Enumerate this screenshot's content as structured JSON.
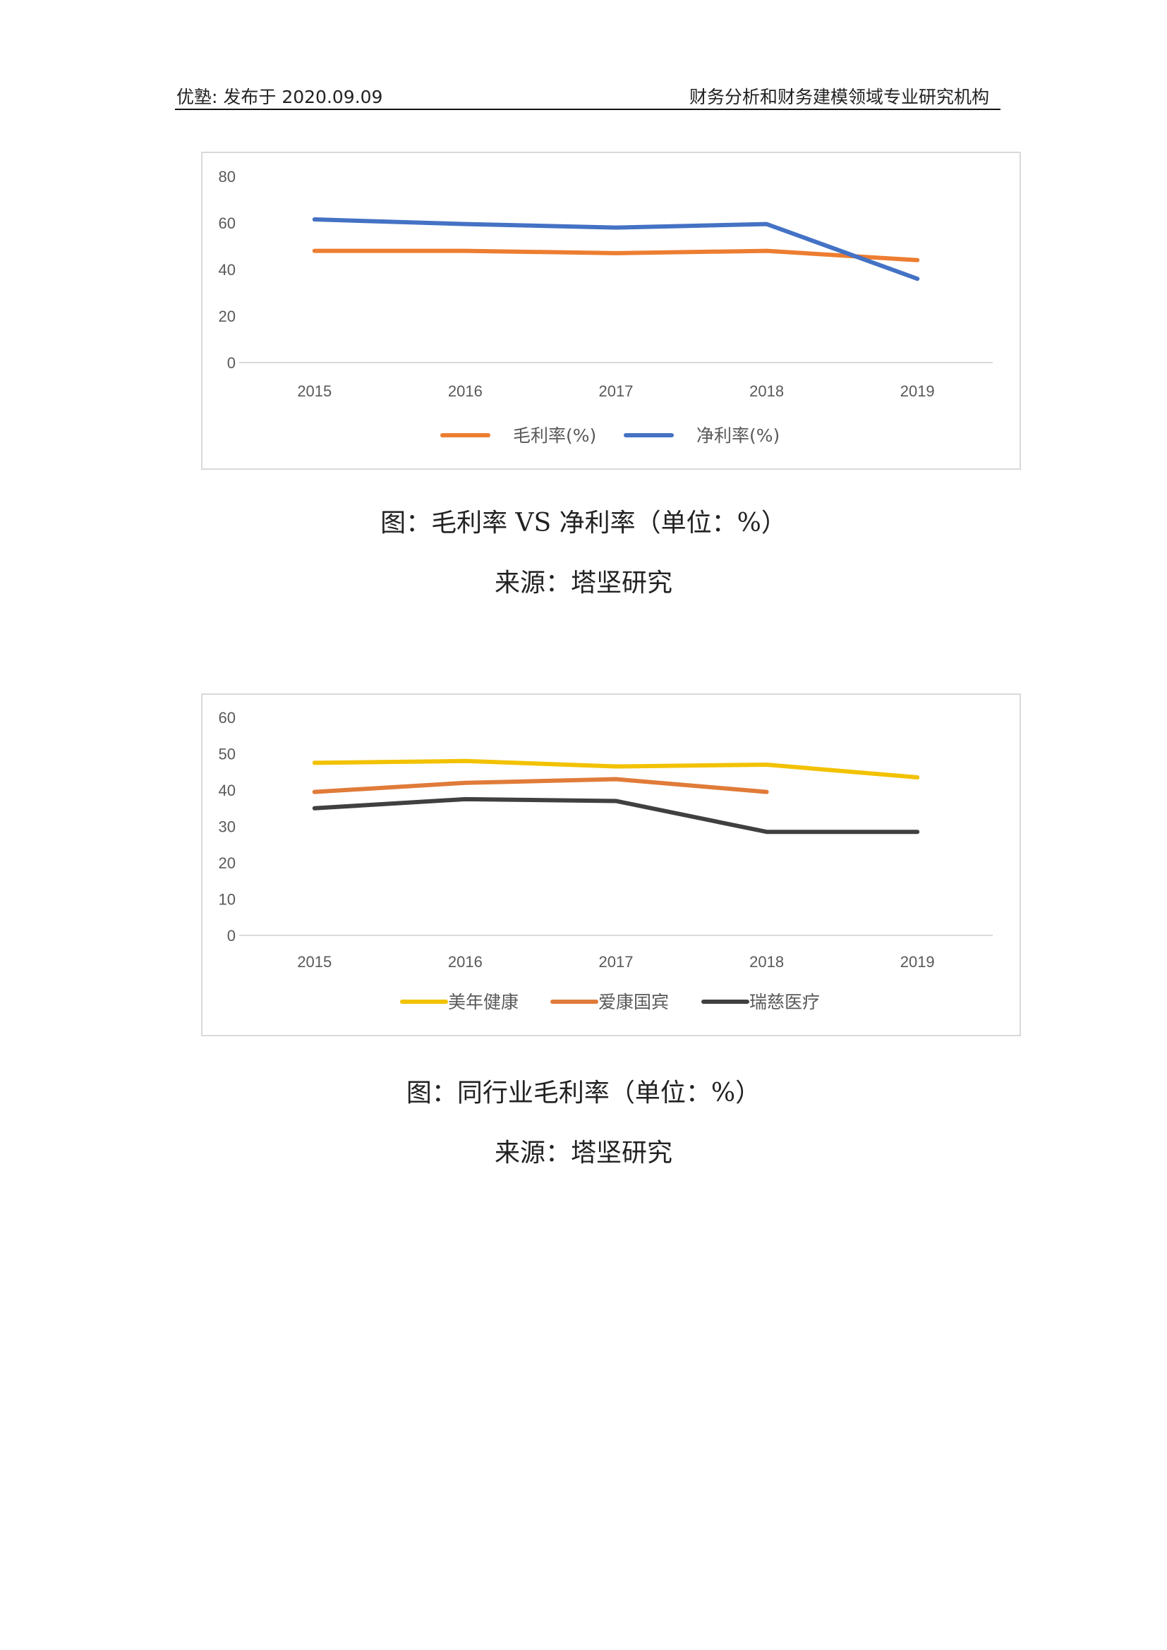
{
  "header": {
    "left": "优塾: 发布于 2020.09.09",
    "right": "财务分析和财务建模领域专业研究机构"
  },
  "figures": [
    {
      "caption": "图：毛利率 VS 净利率（单位：%）",
      "source": "来源：塔坚研究"
    },
    {
      "caption": "图：同行业毛利率（单位：%）",
      "source": "来源：塔坚研究"
    }
  ],
  "chart_data": [
    {
      "type": "line",
      "categories": [
        "2015",
        "2016",
        "2017",
        "2018",
        "2019"
      ],
      "ylim": [
        0,
        80
      ],
      "yticks": [
        0,
        20,
        40,
        60,
        80
      ],
      "grid": false,
      "legend": "bottom",
      "series": [
        {
          "name": "毛利率(%)",
          "color": "#ED7D31",
          "values": [
            48,
            48,
            47,
            48,
            44
          ]
        },
        {
          "name": "净利率(%)",
          "color": "#4472C4",
          "values": [
            61.5,
            59.5,
            58,
            59.5,
            36
          ]
        }
      ]
    },
    {
      "type": "line",
      "categories": [
        "2015",
        "2016",
        "2017",
        "2018",
        "2019"
      ],
      "ylim": [
        0,
        60
      ],
      "yticks": [
        0,
        10,
        20,
        30,
        40,
        50,
        60
      ],
      "grid": false,
      "legend": "bottom",
      "series": [
        {
          "name": "美年健康",
          "color": "#F2C200",
          "values": [
            47.5,
            48,
            46.5,
            47,
            43.5
          ]
        },
        {
          "name": "爱康国宾",
          "color": "#E07B39",
          "values": [
            39.5,
            42,
            43,
            39.5,
            null
          ]
        },
        {
          "name": "瑞慈医疗",
          "color": "#404040",
          "values": [
            35,
            37.5,
            37,
            28.5,
            28.5
          ]
        }
      ]
    }
  ]
}
